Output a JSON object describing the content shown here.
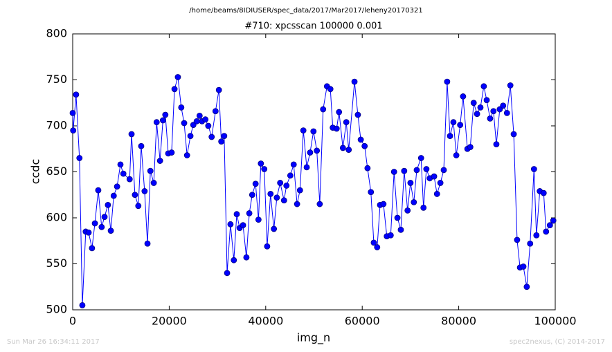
{
  "chart_data": {
    "type": "line",
    "suptitle": "/home/beams/8IDIUSER/spec_data/2017/Mar2017/leheny20170321",
    "title": "#710: xpcsscan 100000 0.001",
    "x_label": "img_n",
    "y_label": "ccdc",
    "footer_left": "Sun Mar 26 16:34:11 2017",
    "footer_right": "spec2nexus, (C) 2014-2017",
    "color": "#0000ff",
    "marker_edge": "#000080",
    "x": [
      0,
      100,
      700,
      1400,
      2000,
      2700,
      3300,
      4000,
      4600,
      5300,
      6000,
      6600,
      7300,
      7900,
      8500,
      9200,
      9900,
      10500,
      11800,
      12200,
      12900,
      13600,
      14200,
      14900,
      15500,
      16100,
      16800,
      17400,
      18100,
      18700,
      19200,
      19800,
      20500,
      21100,
      21800,
      22500,
      23100,
      23700,
      24400,
      25000,
      25700,
      26300,
      26800,
      27500,
      28100,
      28800,
      29600,
      30300,
      30800,
      31400,
      32000,
      32700,
      33400,
      34000,
      34600,
      35300,
      36000,
      36600,
      37200,
      37900,
      38500,
      39000,
      39700,
      40300,
      41000,
      41700,
      42300,
      43000,
      43800,
      44300,
      45100,
      45800,
      46500,
      47100,
      47800,
      48500,
      49200,
      49900,
      50600,
      51200,
      51900,
      52700,
      53400,
      53900,
      54700,
      55200,
      56000,
      56700,
      57200,
      58400,
      59100,
      59700,
      60500,
      61100,
      61800,
      62400,
      63100,
      63700,
      64400,
      65100,
      65900,
      66600,
      67300,
      68000,
      68700,
      69400,
      70000,
      70700,
      71300,
      72200,
      72700,
      73300,
      74000,
      74900,
      75500,
      76200,
      76900,
      77600,
      78200,
      78900,
      79500,
      80300,
      80900,
      81800,
      82400,
      83100,
      83800,
      84500,
      85200,
      85800,
      86500,
      87200,
      87800,
      88500,
      89200,
      90000,
      90700,
      91400,
      92100,
      92700,
      93400,
      94100,
      94800,
      95600,
      96100,
      96800,
      97600,
      98100,
      98900,
      99600
    ],
    "values": [
      714,
      695,
      734,
      665,
      505,
      585,
      584,
      567,
      594,
      630,
      590,
      601,
      614,
      586,
      624,
      634,
      658,
      648,
      642,
      691,
      625,
      613,
      678,
      629,
      572,
      651,
      638,
      704,
      662,
      706,
      712,
      670,
      671,
      740,
      753,
      720,
      703,
      668,
      689,
      701,
      705,
      711,
      705,
      707,
      700,
      688,
      716,
      739,
      683,
      689,
      540,
      593,
      554,
      604,
      589,
      592,
      557,
      605,
      625,
      637,
      598,
      659,
      653,
      569,
      626,
      588,
      622,
      638,
      619,
      635,
      646,
      658,
      615,
      630,
      695,
      655,
      671,
      694,
      673,
      615,
      718,
      743,
      740,
      698,
      697,
      715,
      676,
      704,
      674,
      748,
      712,
      685,
      678,
      654,
      628,
      573,
      568,
      614,
      615,
      580,
      581,
      650,
      600,
      587,
      651,
      608,
      638,
      617,
      652,
      665,
      611,
      653,
      643,
      645,
      626,
      638,
      652,
      748,
      689,
      704,
      668,
      701,
      732,
      675,
      677,
      725,
      713,
      720,
      743,
      728,
      708,
      716,
      680,
      718,
      722,
      714,
      744,
      691,
      576,
      546,
      547,
      525,
      572,
      653,
      581,
      629,
      627,
      585,
      592,
      597
    ],
    "xlim": [
      0,
      100000
    ],
    "ylim": [
      500,
      800
    ],
    "xticks": [
      0,
      20000,
      40000,
      60000,
      80000,
      100000
    ],
    "yticks": [
      500,
      550,
      600,
      650,
      700,
      750,
      800
    ]
  }
}
